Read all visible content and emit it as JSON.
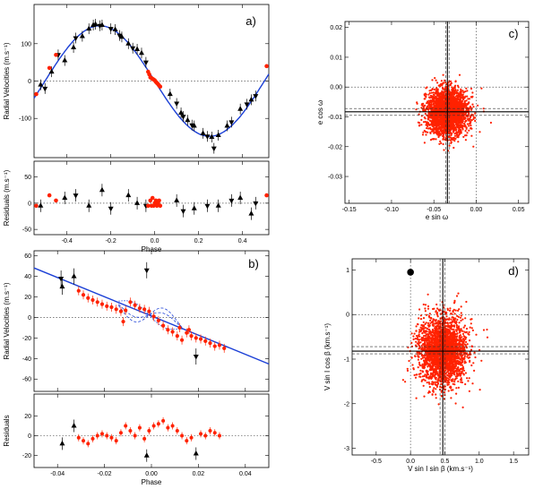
{
  "chart_data": [
    {
      "id": "a",
      "type": "scatter",
      "panel_label": "a)",
      "xlabel": "Phase",
      "ylabel": "Radial Velocities (m.s⁻¹)",
      "xlim": [
        -0.55,
        0.52
      ],
      "ylim": [
        -205,
        205
      ],
      "xticks": [
        -0.4,
        -0.2,
        0.0,
        0.2,
        0.4
      ],
      "yticks": [
        -100,
        0,
        100
      ],
      "colors": {
        "model": "#1b3fd6",
        "red": "#ff2200",
        "black": "#000000"
      },
      "model": {
        "label": "",
        "amplitude": 148,
        "phase_of_max": -0.25
      },
      "series": [
        {
          "marker": "triangle-up",
          "color": "#000000",
          "points": [
            [
              -0.52,
              -10
            ],
            [
              -0.47,
              25
            ],
            [
              -0.41,
              55
            ],
            [
              -0.37,
              90
            ],
            [
              -0.33,
              120
            ],
            [
              -0.3,
              140
            ],
            [
              -0.28,
              150
            ],
            [
              -0.27,
              152
            ],
            [
              -0.24,
              150
            ],
            [
              -0.18,
              138
            ],
            [
              -0.15,
              118
            ],
            [
              -0.12,
              100
            ],
            [
              -0.08,
              85
            ],
            [
              -0.06,
              75
            ],
            [
              0.07,
              -35
            ],
            [
              0.12,
              -85
            ],
            [
              0.15,
              -105
            ],
            [
              0.18,
              -120
            ],
            [
              0.22,
              -140
            ],
            [
              0.26,
              -150
            ],
            [
              0.29,
              -145
            ],
            [
              0.33,
              -120
            ],
            [
              0.39,
              -75
            ],
            [
              0.44,
              -50
            ]
          ]
        },
        {
          "marker": "triangle-down",
          "color": "#000000",
          "points": [
            [
              -0.5,
              -20
            ],
            [
              -0.44,
              70
            ],
            [
              -0.36,
              115
            ],
            [
              -0.25,
              148
            ],
            [
              -0.2,
              140
            ],
            [
              -0.16,
              122
            ],
            [
              -0.1,
              88
            ],
            [
              -0.04,
              50
            ],
            [
              0.1,
              -60
            ],
            [
              0.13,
              -95
            ],
            [
              0.17,
              -118
            ],
            [
              0.24,
              -148
            ],
            [
              0.27,
              -180
            ],
            [
              0.35,
              -110
            ],
            [
              0.42,
              -62
            ],
            [
              0.46,
              -40
            ]
          ]
        },
        {
          "marker": "circle",
          "color": "#ff2200",
          "points": [
            [
              -0.54,
              -35
            ],
            [
              -0.48,
              35
            ],
            [
              -0.45,
              70
            ],
            [
              -0.02,
              10
            ],
            [
              -0.015,
              8
            ],
            [
              -0.01,
              6
            ],
            [
              -0.005,
              4
            ],
            [
              0.0,
              2
            ],
            [
              0.005,
              -2
            ],
            [
              0.01,
              -5
            ],
            [
              0.015,
              -8
            ],
            [
              0.02,
              -12
            ],
            [
              -0.03,
              25
            ],
            [
              -0.025,
              18
            ],
            [
              0.025,
              -15
            ],
            [
              0.51,
              40
            ]
          ]
        }
      ],
      "residuals": {
        "ylim": [
          -60,
          80
        ],
        "yticks": [
          -50,
          0,
          50
        ],
        "ylabel": "Residuals (m.s⁻¹)",
        "black_up": [
          [
            -0.52,
            -5
          ],
          [
            -0.41,
            10
          ],
          [
            -0.3,
            -5
          ],
          [
            -0.24,
            25
          ],
          [
            -0.12,
            15
          ],
          [
            -0.08,
            0
          ],
          [
            0.1,
            5
          ],
          [
            0.18,
            -10
          ],
          [
            0.29,
            -5
          ],
          [
            0.39,
            10
          ],
          [
            0.44,
            -20
          ]
        ],
        "black_down": [
          [
            -0.36,
            15
          ],
          [
            -0.2,
            -10
          ],
          [
            -0.04,
            -5
          ],
          [
            0.13,
            -15
          ],
          [
            0.24,
            -5
          ],
          [
            0.35,
            5
          ],
          [
            0.46,
            0
          ]
        ],
        "red": [
          [
            -0.54,
            -5
          ],
          [
            -0.48,
            15
          ],
          [
            -0.45,
            5
          ],
          [
            -0.02,
            5
          ],
          [
            -0.015,
            -5
          ],
          [
            -0.01,
            10
          ],
          [
            -0.005,
            -5
          ],
          [
            0.0,
            0
          ],
          [
            0.005,
            5
          ],
          [
            0.01,
            -5
          ],
          [
            0.015,
            0
          ],
          [
            0.02,
            5
          ],
          [
            -0.03,
            -5
          ],
          [
            0.025,
            -5
          ],
          [
            0.51,
            15
          ]
        ]
      }
    },
    {
      "id": "b",
      "type": "scatter",
      "panel_label": "b)",
      "xlabel": "Phase",
      "ylabel": "Radial Velocities (m.s⁻¹)",
      "xlim": [
        -0.05,
        0.05
      ],
      "ylim": [
        -72,
        65
      ],
      "xticks": [
        -0.04,
        -0.02,
        0.0,
        0.02,
        0.04
      ],
      "yticks": [
        -60,
        -40,
        -20,
        0,
        20,
        40,
        60
      ],
      "trend": {
        "slope": -935,
        "intercept": 1.5
      },
      "series": [
        {
          "marker": "triangle-up",
          "color": "#000000",
          "points": [
            [
              -0.038,
              30
            ],
            [
              -0.033,
              40
            ]
          ]
        },
        {
          "marker": "triangle-down",
          "color": "#000000",
          "points": [
            [
              -0.0385,
              38
            ],
            [
              -0.002,
              46
            ],
            [
              0.019,
              -38
            ]
          ]
        },
        {
          "marker": "circle",
          "color": "#ff2200",
          "points": [
            [
              -0.031,
              26
            ],
            [
              -0.029,
              22
            ],
            [
              -0.027,
              19
            ],
            [
              -0.025,
              17
            ],
            [
              -0.023,
              15
            ],
            [
              -0.021,
              13
            ],
            [
              -0.019,
              11
            ],
            [
              -0.017,
              10
            ],
            [
              -0.015,
              8
            ],
            [
              -0.013,
              6
            ],
            [
              -0.011,
              7
            ],
            [
              -0.009,
              15
            ],
            [
              -0.007,
              12
            ],
            [
              -0.005,
              9
            ],
            [
              -0.003,
              8
            ],
            [
              -0.001,
              6
            ],
            [
              0.001,
              1
            ],
            [
              0.003,
              -3
            ],
            [
              0.005,
              -8
            ],
            [
              0.007,
              -12
            ],
            [
              0.009,
              -14
            ],
            [
              0.011,
              -18
            ],
            [
              0.013,
              -22
            ],
            [
              0.015,
              -15
            ],
            [
              0.017,
              -18
            ],
            [
              0.019,
              -20
            ],
            [
              0.021,
              -21
            ],
            [
              0.023,
              -23
            ],
            [
              0.025,
              -25
            ],
            [
              0.027,
              -28
            ],
            [
              0.029,
              -27
            ],
            [
              0.031,
              -30
            ],
            [
              -0.012,
              -4
            ],
            [
              0.012,
              -10
            ],
            [
              0.016,
              -12
            ]
          ]
        }
      ],
      "residuals": {
        "ylim": [
          -32,
          42
        ],
        "yticks": [
          -20,
          0,
          20
        ],
        "ylabel": "Residuals",
        "black": [
          [
            -0.038,
            -8
          ],
          [
            -0.033,
            10
          ],
          [
            -0.002,
            -20
          ],
          [
            0.019,
            -18
          ]
        ],
        "red": [
          [
            -0.031,
            -2
          ],
          [
            -0.029,
            -5
          ],
          [
            -0.027,
            -8
          ],
          [
            -0.025,
            -3
          ],
          [
            -0.023,
            0
          ],
          [
            -0.021,
            2
          ],
          [
            -0.019,
            0
          ],
          [
            -0.017,
            -2
          ],
          [
            -0.015,
            -5
          ],
          [
            -0.013,
            3
          ],
          [
            -0.011,
            10
          ],
          [
            -0.009,
            5
          ],
          [
            -0.007,
            0
          ],
          [
            -0.005,
            8
          ],
          [
            -0.003,
            -3
          ],
          [
            -0.001,
            5
          ],
          [
            0.001,
            10
          ],
          [
            0.003,
            12
          ],
          [
            0.005,
            15
          ],
          [
            0.007,
            8
          ],
          [
            0.009,
            10
          ],
          [
            0.011,
            5
          ],
          [
            0.013,
            0
          ],
          [
            0.015,
            -5
          ],
          [
            0.017,
            -2
          ],
          [
            0.021,
            2
          ],
          [
            0.023,
            0
          ],
          [
            0.025,
            5
          ],
          [
            0.027,
            3
          ],
          [
            0.029,
            0
          ]
        ]
      }
    },
    {
      "id": "c",
      "type": "scatter",
      "panel_label": "c)",
      "xlabel": "e sin ω",
      "ylabel": "e cos ω",
      "xlim": [
        -0.155,
        0.062
      ],
      "ylim": [
        -0.039,
        0.022
      ],
      "xticks": [
        -0.15,
        -0.1,
        -0.05,
        0.0,
        0.05
      ],
      "yticks": [
        -0.03,
        -0.02,
        -0.01,
        0.0,
        0.01,
        0.02
      ],
      "cloud": {
        "center": [
          -0.034,
          -0.0085
        ],
        "std": [
          0.012,
          0.0038
        ],
        "color": "#ff2200"
      },
      "best_fit": [
        -0.034,
        -0.0083
      ],
      "confidence_x": [
        -0.036,
        -0.032
      ],
      "confidence_y": [
        -0.0095,
        -0.0072
      ]
    },
    {
      "id": "d",
      "type": "scatter",
      "panel_label": "d)",
      "xlabel": "V sin I  sin β   (km.s⁻¹)",
      "ylabel": "V sin I  cos β   (km.s⁻¹)",
      "xlim": [
        -0.85,
        1.72
      ],
      "ylim": [
        -3.15,
        1.25
      ],
      "xticks": [
        -0.5,
        0.0,
        0.5,
        1.0,
        1.5
      ],
      "yticks": [
        -3,
        -2,
        -1,
        0,
        1
      ],
      "cloud": {
        "center": [
          0.47,
          -0.82
        ],
        "std": [
          0.17,
          0.38
        ],
        "color": "#ff2200"
      },
      "best_fit": [
        0.47,
        -0.82
      ],
      "confidence_x": [
        0.43,
        0.5
      ],
      "confidence_y": [
        -0.88,
        -0.72
      ],
      "black_point": [
        0.0,
        0.95
      ]
    }
  ]
}
